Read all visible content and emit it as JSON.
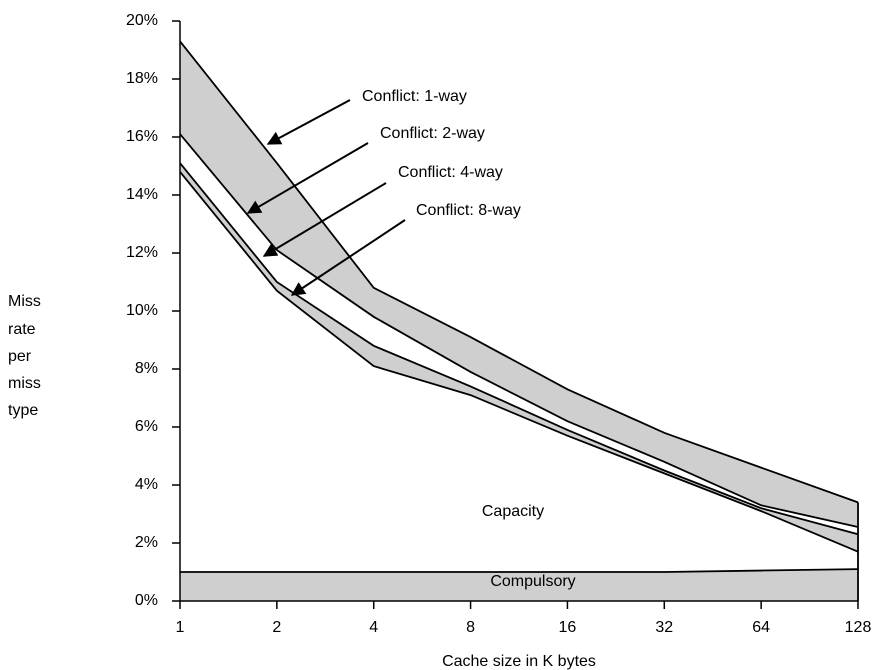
{
  "chart_data": {
    "type": "line",
    "xlabel": "Cache size in K bytes",
    "ylabel": [
      "Miss",
      "rate",
      "per",
      "miss",
      "type"
    ],
    "categories": [
      "1",
      "2",
      "4",
      "8",
      "16",
      "32",
      "64",
      "128"
    ],
    "series": [
      {
        "color": "#000000",
        "fill": "#cfcfcf",
        "values": [
          19.3,
          15.1,
          10.8,
          9.1,
          7.3,
          5.8,
          4.6,
          3.4
        ]
      },
      {
        "color": "#000000",
        "fill": "#ffffff",
        "values": [
          16.1,
          12.1,
          9.8,
          7.9,
          6.2,
          4.8,
          3.3,
          2.55
        ]
      },
      {
        "color": "#000000",
        "fill": "#cfcfcf",
        "values": [
          15.1,
          11.0,
          8.8,
          7.4,
          5.9,
          4.5,
          3.2,
          2.3
        ]
      },
      {
        "color": "#000000",
        "fill": "#ffffff",
        "values": [
          14.8,
          10.7,
          8.1,
          7.1,
          5.7,
          4.4,
          3.1,
          1.7
        ]
      },
      {
        "color": "#000000",
        "fill": "#cfcfcf",
        "values": [
          1.0,
          1.0,
          1.0,
          1.0,
          1.0,
          1.0,
          1.05,
          1.1
        ]
      }
    ],
    "annotations": [
      "Conflict: 1-way",
      "Conflict: 2-way",
      "Conflict: 4-way",
      "Conflict: 8-way"
    ],
    "region_labels": [
      "Capacity",
      "Compulsory"
    ],
    "ylim": [
      0,
      20
    ],
    "yticks": [
      {
        "value": 0,
        "label": "0%"
      },
      {
        "value": 2,
        "label": "2%"
      },
      {
        "value": 4,
        "label": "4%"
      },
      {
        "value": 6,
        "label": "6%"
      },
      {
        "value": 8,
        "label": "8%"
      },
      {
        "value": 10,
        "label": "10%"
      },
      {
        "value": 12,
        "label": "12%"
      },
      {
        "value": 14,
        "label": "14%"
      },
      {
        "value": 16,
        "label": "16%"
      },
      {
        "value": 18,
        "label": "18%"
      },
      {
        "value": 20,
        "label": "20%"
      }
    ]
  }
}
